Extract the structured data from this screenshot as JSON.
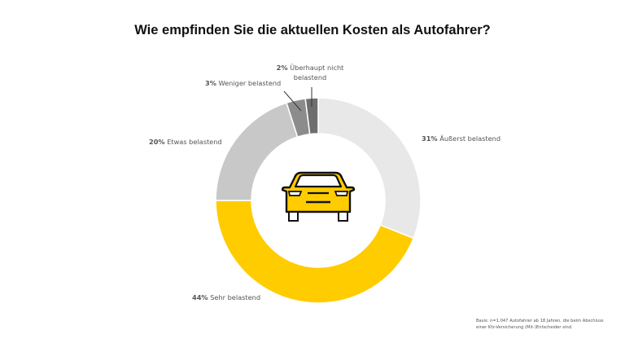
{
  "chart_data": {
    "type": "pie",
    "donut": true,
    "title": "Wie empfinden Sie die aktuellen Kosten als Autofahrer?",
    "slices": [
      {
        "label": "Äußerst belastend",
        "value": 31,
        "color": "#e8e8e8"
      },
      {
        "label": "Sehr belastend",
        "value": 44,
        "color": "#ffcc00"
      },
      {
        "label": "Etwas belastend",
        "value": 20,
        "color": "#c8c8c8"
      },
      {
        "label": "Weniger belastend",
        "value": 3,
        "color": "#8c8c8c"
      },
      {
        "label": "Überhaupt nicht belastend",
        "value": 2,
        "color": "#6e6e6e"
      }
    ],
    "center_icon": "car-icon",
    "footnote": "Basis: n=1.047 Autofahrer ab 18 Jahren, die beim Abschluss einer Kfz-Versicherung (Mit-)Entscheider sind."
  }
}
